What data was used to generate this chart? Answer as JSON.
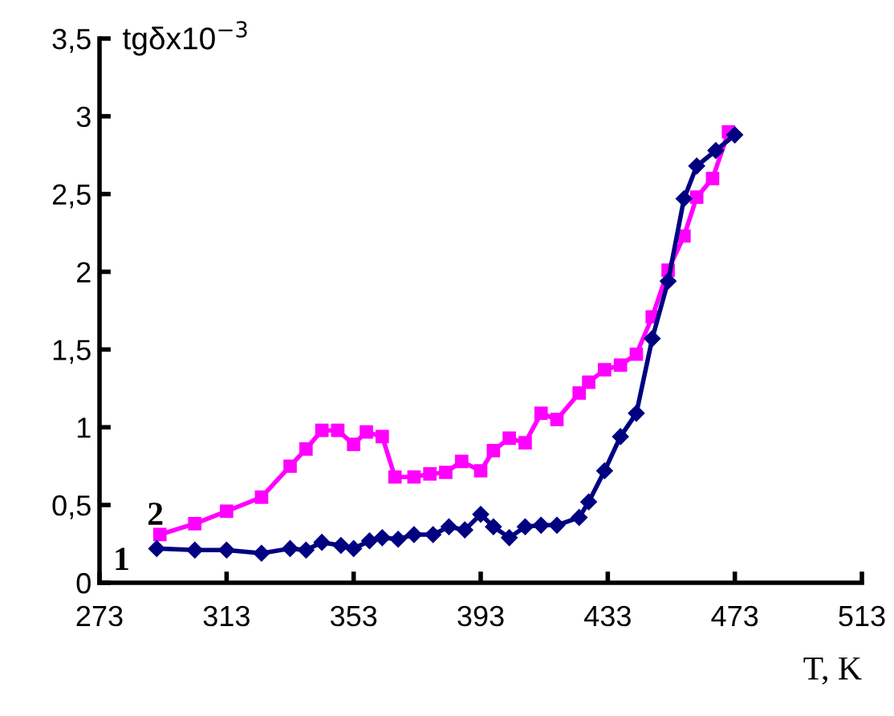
{
  "chart_data": {
    "type": "line",
    "ylabel": "tgδx10$^{−3}$",
    "xlabel": "T, K",
    "series": [
      {
        "color": "#000080",
        "marker": "diamond",
        "x": [
          291,
          303,
          313,
          324,
          333,
          338,
          343,
          349,
          353,
          358,
          362,
          367,
          372,
          378,
          383,
          388,
          393,
          397,
          402,
          407,
          412,
          417,
          424,
          427,
          432,
          437,
          442,
          447,
          452,
          457,
          461,
          467,
          473
        ],
        "values": [
          0.22,
          0.21,
          0.21,
          0.19,
          0.22,
          0.21,
          0.26,
          0.24,
          0.22,
          0.27,
          0.29,
          0.28,
          0.31,
          0.31,
          0.36,
          0.34,
          0.44,
          0.36,
          0.29,
          0.36,
          0.37,
          0.37,
          0.42,
          0.52,
          0.72,
          0.94,
          1.09,
          1.57,
          1.94,
          2.47,
          2.68,
          2.78,
          2.88
        ]
      },
      {
        "color": "#ff00ff",
        "marker": "square",
        "x": [
          292,
          303,
          313,
          324,
          333,
          338,
          343,
          348,
          353,
          357,
          362,
          366,
          372,
          377,
          382,
          387,
          393,
          397,
          402,
          407,
          412,
          417,
          424,
          427,
          432,
          437,
          442,
          447,
          452,
          457,
          461,
          466,
          471
        ],
        "values": [
          0.31,
          0.38,
          0.46,
          0.55,
          0.75,
          0.86,
          0.98,
          0.98,
          0.89,
          0.97,
          0.94,
          0.68,
          0.68,
          0.7,
          0.71,
          0.78,
          0.72,
          0.85,
          0.93,
          0.9,
          1.09,
          1.05,
          1.22,
          1.29,
          1.37,
          1.4,
          1.47,
          1.71,
          2.01,
          2.23,
          2.48,
          2.6,
          2.9
        ]
      }
    ],
    "annotations": [
      {
        "text": "1",
        "x": 291,
        "y": 0.22
      },
      {
        "text": "2",
        "x": 292,
        "y": 0.31
      }
    ],
    "xlim": [
      273,
      513
    ],
    "xticks": [
      273,
      313,
      353,
      393,
      433,
      473,
      513
    ],
    "ylim": [
      0,
      3.5
    ],
    "yticks": [
      0,
      {
        "value": 0.5,
        "label": "0,5"
      },
      1,
      {
        "value": 1.5,
        "label": "1,5"
      },
      2,
      {
        "value": 2.5,
        "label": "2,5"
      },
      3,
      {
        "value": 3.5,
        "label": "3,5"
      }
    ],
    "grid": false,
    "legend": false
  }
}
